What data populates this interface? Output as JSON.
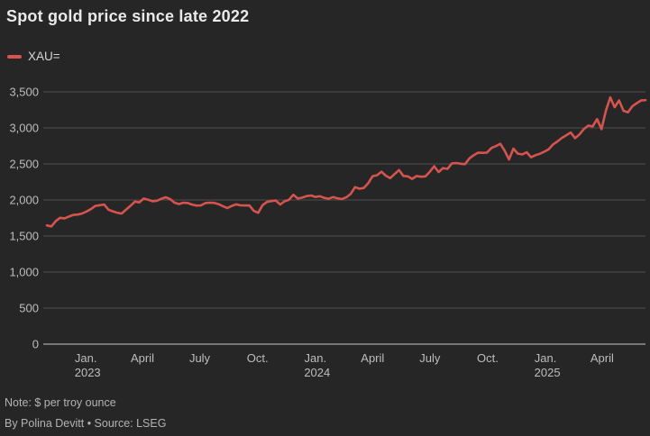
{
  "header": {
    "title": "Spot gold price since late 2022"
  },
  "legend": {
    "label": "XAU="
  },
  "footer": {
    "note": "Note: $ per troy ounce",
    "byline": "By Polina Devitt • Source: LSEG"
  },
  "chart_data": {
    "type": "line",
    "title": "Spot gold price since late 2022",
    "xlabel": "",
    "ylabel": "",
    "unit": "$ per troy ounce",
    "grid": "horizontal",
    "legend_position": "top-left",
    "ylim": [
      0,
      3500
    ],
    "colors": {
      "background": "#262626",
      "grid": "#4d4d4d",
      "axis": "#c8c8c8",
      "tick_label": "#bdbdbd"
    },
    "y_ticks": [
      {
        "value": 0,
        "label": "0"
      },
      {
        "value": 500,
        "label": "500"
      },
      {
        "value": 1000,
        "label": "1,000"
      },
      {
        "value": 1500,
        "label": "1,500"
      },
      {
        "value": 2000,
        "label": "2,000"
      },
      {
        "value": 2500,
        "label": "2,500"
      },
      {
        "value": 3000,
        "label": "3,000"
      },
      {
        "value": 3500,
        "label": "3,500"
      }
    ],
    "x_ticks": [
      {
        "date": "2023-01-01",
        "label": "Jan.",
        "year": "2023"
      },
      {
        "date": "2023-04-01",
        "label": "April"
      },
      {
        "date": "2023-07-01",
        "label": "July"
      },
      {
        "date": "2023-10-01",
        "label": "Oct."
      },
      {
        "date": "2024-01-01",
        "label": "Jan.",
        "year": "2024"
      },
      {
        "date": "2024-04-01",
        "label": "April"
      },
      {
        "date": "2024-07-01",
        "label": "July"
      },
      {
        "date": "2024-10-01",
        "label": "Oct."
      },
      {
        "date": "2025-01-01",
        "label": "Jan.",
        "year": "2025"
      },
      {
        "date": "2025-04-01",
        "label": "April"
      }
    ],
    "series": [
      {
        "name": "XAU=",
        "color": "#d6544e",
        "start_date": "2022-10-31",
        "step_days": 7,
        "values": [
          1648,
          1632,
          1706,
          1752,
          1745,
          1770,
          1792,
          1798,
          1812,
          1840,
          1872,
          1918,
          1928,
          1938,
          1865,
          1842,
          1822,
          1811,
          1868,
          1920,
          1978,
          1966,
          2020,
          2004,
          1983,
          1990,
          2016,
          2037,
          2012,
          1962,
          1944,
          1962,
          1958,
          1936,
          1922,
          1925,
          1958,
          1962,
          1960,
          1943,
          1914,
          1889,
          1917,
          1940,
          1925,
          1924,
          1925,
          1849,
          1822,
          1928,
          1972,
          1985,
          1993,
          1938,
          1981,
          2003,
          2072,
          2020,
          2033,
          2054,
          2063,
          2042,
          2052,
          2030,
          2018,
          2040,
          2024,
          2013,
          2036,
          2083,
          2179,
          2156,
          2166,
          2233,
          2330,
          2344,
          2392,
          2338,
          2302,
          2360,
          2415,
          2334,
          2327,
          2293,
          2333,
          2322,
          2327,
          2392,
          2469,
          2387,
          2443,
          2431,
          2508,
          2512,
          2503,
          2497,
          2577,
          2622,
          2658,
          2654,
          2657,
          2721,
          2747,
          2780,
          2684,
          2563,
          2712,
          2643,
          2633,
          2662,
          2593,
          2621,
          2641,
          2670,
          2703,
          2771,
          2812,
          2861,
          2897,
          2936,
          2858,
          2910,
          2984,
          3032,
          3021,
          3122,
          2982,
          3240,
          3424,
          3288,
          3381,
          3237,
          3216,
          3300,
          3342,
          3381,
          3385
        ]
      }
    ]
  }
}
